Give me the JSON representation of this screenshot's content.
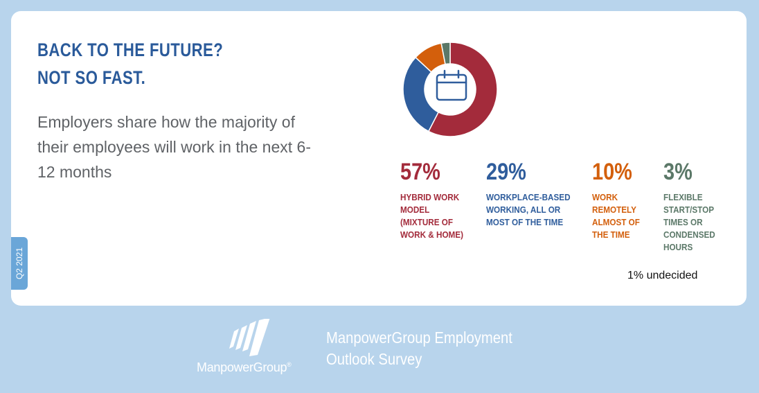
{
  "headline": {
    "line1": "BACK TO THE FUTURE?",
    "line2": "NOT SO FAST."
  },
  "subtitle": "Employers share how the majority of their employees will work in the next 6-12 months",
  "quarter_tab": "Q2 2021",
  "icons": {
    "center": "calendar-icon",
    "logo": "manpowergroup-logo-icon"
  },
  "chart_data": {
    "type": "pie",
    "categories": [
      "HYBRID WORK MODEL (MIXTURE OF WORK & HOME)",
      "WORKPLACE-BASED WORKING, ALL OR MOST OF THE TIME",
      "WORK REMOTELY ALMOST OF THE TIME",
      "FLEXIBLE START/STOP TIMES OR CONDENSED HOURS"
    ],
    "values": [
      57,
      29,
      10,
      3
    ],
    "value_labels": [
      "57%",
      "29%",
      "10%",
      "3%"
    ],
    "label_lines": [
      "HYBRID WORK\nMODEL\n(MIXTURE OF\nWORK & HOME)",
      "WORKPLACE-BASED\nWORKING, ALL OR\nMOST OF THE TIME",
      "WORK\nREMOTELY\nALMOST OF\nTHE TIME",
      "FLEXIBLE\nSTART/STOP\nTIMES OR\nCONDENSED\nHOURS"
    ],
    "colors": [
      "#a32b3b",
      "#2f5d9c",
      "#d35f0c",
      "#5b7868"
    ],
    "gap_color": "#ffffff",
    "annotation": "1% undecided",
    "style": "donut"
  },
  "footer": {
    "brand": "ManpowerGroup",
    "brand_mark": "®",
    "survey_line1": "ManpowerGroup Employment",
    "survey_line2": "Outlook Survey"
  }
}
